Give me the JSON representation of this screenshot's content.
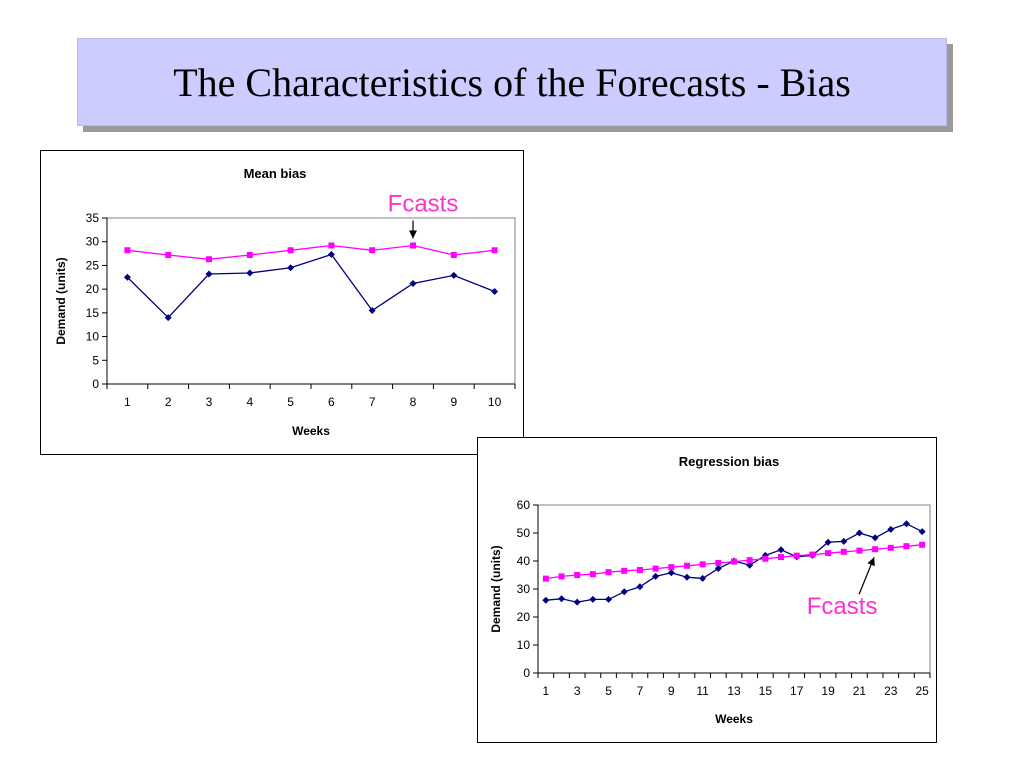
{
  "slide": {
    "title": "The Characteristics of the Forecasts - Bias"
  },
  "colors": {
    "title_bg": "#ccccff",
    "actual_series": "#000080",
    "forecast_series": "#ff00ff",
    "annotation": "#ff33cc"
  },
  "chart_data": [
    {
      "type": "line",
      "title": "Mean bias",
      "xlabel": "Weeks",
      "ylabel": "Demand (units)",
      "x": [
        1,
        2,
        3,
        4,
        5,
        6,
        7,
        8,
        9,
        10
      ],
      "x_tick_labels": [
        "1",
        "2",
        "3",
        "4",
        "5",
        "6",
        "7",
        "8",
        "9",
        "10"
      ],
      "ylim": [
        0,
        35
      ],
      "y_ticks": [
        0,
        5,
        10,
        15,
        20,
        25,
        30,
        35
      ],
      "grid": false,
      "legend": "none",
      "series": [
        {
          "marker": "diamond",
          "values": [
            22.5,
            14,
            23.2,
            23.4,
            24.5,
            27.3,
            15.5,
            21.2,
            22.9,
            19.5
          ]
        },
        {
          "marker": "square",
          "values": [
            28.2,
            27.2,
            26.3,
            27.2,
            28.2,
            29.2,
            28.2,
            29.2,
            27.2,
            28.2
          ]
        }
      ],
      "annotation": {
        "text": "Fcasts",
        "target_x": 8,
        "target_series": 1
      }
    },
    {
      "type": "line",
      "title": "Regression bias",
      "xlabel": "Weeks",
      "ylabel": "Demand (units)",
      "x": [
        1,
        2,
        3,
        4,
        5,
        6,
        7,
        8,
        9,
        10,
        11,
        12,
        13,
        14,
        15,
        16,
        17,
        18,
        19,
        20,
        21,
        22,
        23,
        24,
        25
      ],
      "x_tick_labels": [
        "1",
        "3",
        "5",
        "7",
        "9",
        "11",
        "13",
        "15",
        "17",
        "19",
        "21",
        "23",
        "25"
      ],
      "x_tick_label_values": [
        1,
        3,
        5,
        7,
        9,
        11,
        13,
        15,
        17,
        19,
        21,
        23,
        25
      ],
      "ylim": [
        0,
        60
      ],
      "y_ticks": [
        0,
        10,
        20,
        30,
        40,
        50,
        60
      ],
      "grid": false,
      "legend": "none",
      "series": [
        {
          "marker": "diamond",
          "values": [
            26,
            26.5,
            25.3,
            26.3,
            26.3,
            29,
            30.8,
            34.5,
            35.8,
            34.2,
            33.8,
            37.3,
            40,
            38.5,
            42,
            44,
            41.5,
            42,
            46.7,
            47,
            50,
            48.3,
            51.3,
            53.3,
            50.5
          ]
        },
        {
          "marker": "square",
          "values": [
            33.7,
            34.5,
            35,
            35.3,
            36,
            36.5,
            36.8,
            37.3,
            37.8,
            38.3,
            38.8,
            39.3,
            39.8,
            40.3,
            40.8,
            41.4,
            41.9,
            42.3,
            42.8,
            43.3,
            43.7,
            44.2,
            44.7,
            45.3,
            45.8
          ]
        }
      ],
      "annotation": {
        "text": "Fcasts",
        "target_x": 22,
        "target_series": 1
      }
    }
  ]
}
